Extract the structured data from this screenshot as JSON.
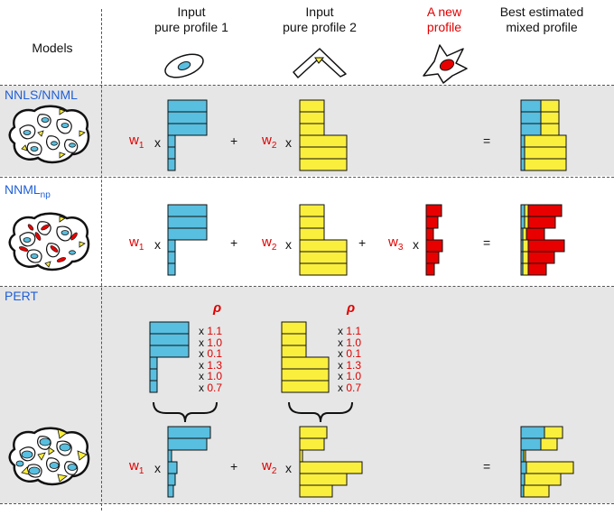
{
  "headers": {
    "models": "Models",
    "input1": "Input\npure profile 1",
    "input2": "Input\npure profile 2",
    "newprofile": "A new\nprofile",
    "best": "Best estimated\nmixed profile"
  },
  "models": {
    "row1": "NNLS/NNML",
    "row2_main": "NNML",
    "row2_sub": "np",
    "row3": "PERT"
  },
  "weights": {
    "w1": "w",
    "w1_sub": "1",
    "w2": "w",
    "w2_sub": "2",
    "w3": "w",
    "w3_sub": "3"
  },
  "operators": {
    "times": "x",
    "plus": "+",
    "equals": "="
  },
  "rho": "ρ",
  "factors": {
    "profile1": [
      "1.1",
      "1.0",
      "0.1",
      "1.3",
      "1.0",
      "0.7"
    ],
    "profile2": [
      "1.1",
      "1.0",
      "0.1",
      "1.3",
      "1.0",
      "0.7"
    ]
  },
  "colors": {
    "blue": "#58bfe0",
    "yellow": "#fbef3d",
    "red": "#e80000",
    "band": "#e6e6e6",
    "model_text": "#1f5fd6"
  }
}
